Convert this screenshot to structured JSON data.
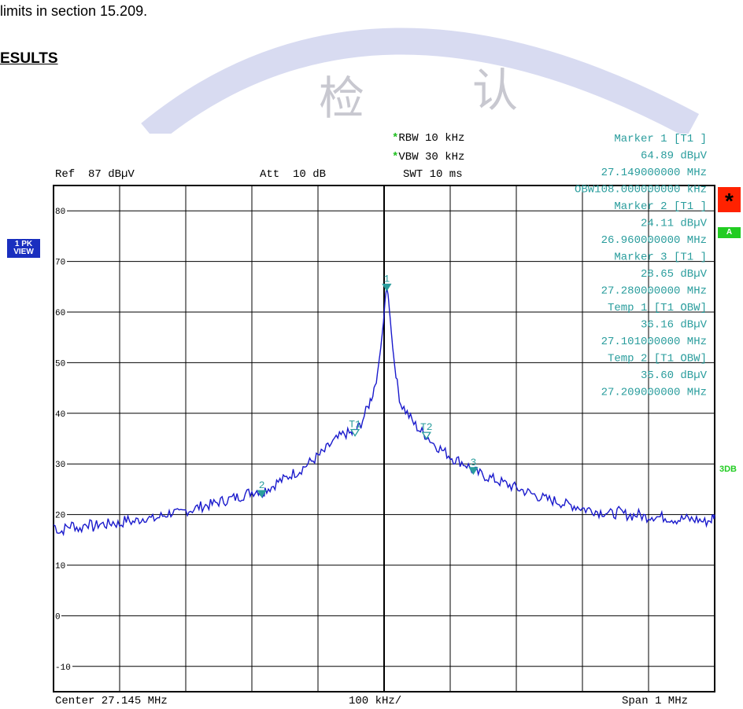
{
  "document": {
    "line_text": "limits in section 15.209.",
    "results_heading": "ESULTS"
  },
  "watermark": {
    "chars": [
      "检",
      "认"
    ]
  },
  "analyzer": {
    "rbw_label": "RBW 10 kHz",
    "vbw_label": "VBW 30 kHz",
    "swt_label": "SWT 10 ms",
    "ref_label": "Ref  87 dBµV",
    "att_label": "Att  10 dB",
    "center_label": "Center 27.145 MHz",
    "div_label": "100 kHz/",
    "span_label": "Span 1 MHz",
    "trace_mode": [
      "1 PK",
      "VIEW"
    ],
    "badge_a": "A",
    "badge_star": "*",
    "badge_3db": "3DB"
  },
  "marker_info": [
    "Marker 1 [T1 ]",
    "64.89 dBµV",
    "27.149000000 MHz",
    "OBW108.000000000 kHz",
    "Marker 2 [T1 ]",
    "24.11 dBµV",
    "26.960000000 MHz",
    "Marker 3 [T1 ]",
    "28.65 dBµV",
    "27.280000000 MHz",
    "Temp 1 [T1 OBW]",
    "36.16 dBµV",
    "27.101000000 MHz",
    "Temp 2 [T1 OBW]",
    "35.60 dBµV",
    "27.209000000 MHz"
  ],
  "colors": {
    "trace": "#1a1acc",
    "marker": "#2a9d9d",
    "grid": "#000000",
    "badge_blue": "#1a2fbf",
    "badge_green": "#22cc22",
    "badge_red": "#ff2200"
  },
  "chart_data": {
    "type": "line",
    "xlabel": "",
    "ylabel": "",
    "xlim": [
      26.645,
      27.645
    ],
    "ylim": [
      -15,
      85
    ],
    "yticks": [
      80,
      70,
      60,
      50,
      40,
      30,
      20,
      10,
      0,
      -10
    ],
    "ytick_labels": [
      "80",
      "70",
      "60",
      "50",
      "40",
      "30",
      "20",
      "10",
      "0",
      "-10"
    ],
    "grid": true,
    "series": [
      {
        "values": [
          [
            26.645,
            18.0
          ],
          [
            26.655,
            16.5
          ],
          [
            26.665,
            17.5
          ],
          [
            26.675,
            18.0
          ],
          [
            26.685,
            17.0
          ],
          [
            26.695,
            18.5
          ],
          [
            26.705,
            17.5
          ],
          [
            26.715,
            18.2
          ],
          [
            26.725,
            18.0
          ],
          [
            26.735,
            18.5
          ],
          [
            26.745,
            18.0
          ],
          [
            26.755,
            19.0
          ],
          [
            26.765,
            18.5
          ],
          [
            26.775,
            19.0
          ],
          [
            26.785,
            19.5
          ],
          [
            26.795,
            19.0
          ],
          [
            26.805,
            19.5
          ],
          [
            26.815,
            20.0
          ],
          [
            26.825,
            20.5
          ],
          [
            26.835,
            20.0
          ],
          [
            26.845,
            20.8
          ],
          [
            26.855,
            21.0
          ],
          [
            26.865,
            21.5
          ],
          [
            26.875,
            21.8
          ],
          [
            26.885,
            22.0
          ],
          [
            26.895,
            22.5
          ],
          [
            26.905,
            22.8
          ],
          [
            26.915,
            23.2
          ],
          [
            26.925,
            23.5
          ],
          [
            26.935,
            24.0
          ],
          [
            26.945,
            24.5
          ],
          [
            26.955,
            24.8
          ],
          [
            26.96,
            24.1
          ],
          [
            26.965,
            25.0
          ],
          [
            26.975,
            25.5
          ],
          [
            26.985,
            26.5
          ],
          [
            26.995,
            27.0
          ],
          [
            27.005,
            28.0
          ],
          [
            27.015,
            28.5
          ],
          [
            27.025,
            29.5
          ],
          [
            27.035,
            30.5
          ],
          [
            27.045,
            31.5
          ],
          [
            27.055,
            32.5
          ],
          [
            27.065,
            34.0
          ],
          [
            27.075,
            35.0
          ],
          [
            27.085,
            36.0
          ],
          [
            27.095,
            36.0
          ],
          [
            27.101,
            36.2
          ],
          [
            27.11,
            38.0
          ],
          [
            27.12,
            41.0
          ],
          [
            27.128,
            44.0
          ],
          [
            27.135,
            48.0
          ],
          [
            27.14,
            53.0
          ],
          [
            27.144,
            58.0
          ],
          [
            27.147,
            63.0
          ],
          [
            27.149,
            64.9
          ],
          [
            27.151,
            63.5
          ],
          [
            27.154,
            59.0
          ],
          [
            27.158,
            53.0
          ],
          [
            27.163,
            47.0
          ],
          [
            27.17,
            42.0
          ],
          [
            27.18,
            40.0
          ],
          [
            27.19,
            38.0
          ],
          [
            27.2,
            36.5
          ],
          [
            27.209,
            35.6
          ],
          [
            27.22,
            34.0
          ],
          [
            27.23,
            33.0
          ],
          [
            27.24,
            32.0
          ],
          [
            27.25,
            31.0
          ],
          [
            27.26,
            30.5
          ],
          [
            27.27,
            29.8
          ],
          [
            27.28,
            28.65
          ],
          [
            27.29,
            28.0
          ],
          [
            27.3,
            27.5
          ],
          [
            27.31,
            27.0
          ],
          [
            27.32,
            26.5
          ],
          [
            27.33,
            26.0
          ],
          [
            27.34,
            25.5
          ],
          [
            27.35,
            25.0
          ],
          [
            27.36,
            24.5
          ],
          [
            27.37,
            24.0
          ],
          [
            27.38,
            23.5
          ],
          [
            27.39,
            23.0
          ],
          [
            27.4,
            22.8
          ],
          [
            27.41,
            22.5
          ],
          [
            27.42,
            22.0
          ],
          [
            27.43,
            21.8
          ],
          [
            27.44,
            21.5
          ],
          [
            27.45,
            21.0
          ],
          [
            27.46,
            21.0
          ],
          [
            27.47,
            20.5
          ],
          [
            27.48,
            20.5
          ],
          [
            27.49,
            20.0
          ],
          [
            27.5,
            20.5
          ],
          [
            27.51,
            20.0
          ],
          [
            27.52,
            19.8
          ],
          [
            27.53,
            20.0
          ],
          [
            27.54,
            19.5
          ],
          [
            27.55,
            19.8
          ],
          [
            27.56,
            19.5
          ],
          [
            27.57,
            19.5
          ],
          [
            27.58,
            19.2
          ],
          [
            27.59,
            19.0
          ],
          [
            27.6,
            19.2
          ],
          [
            27.61,
            19.0
          ],
          [
            27.62,
            19.0
          ],
          [
            27.63,
            18.5
          ],
          [
            27.64,
            19.0
          ],
          [
            27.645,
            20.0
          ]
        ]
      }
    ],
    "markers": [
      {
        "label": "1",
        "x": 27.149,
        "y": 64.89,
        "filled": true
      },
      {
        "label": "2",
        "x": 26.96,
        "y": 24.11,
        "filled": true
      },
      {
        "label": "3",
        "x": 27.28,
        "y": 28.65,
        "filled": true
      },
      {
        "label": "T1",
        "x": 27.101,
        "y": 36.16,
        "filled": false
      },
      {
        "label": "T2",
        "x": 27.209,
        "y": 35.6,
        "filled": false
      }
    ]
  }
}
